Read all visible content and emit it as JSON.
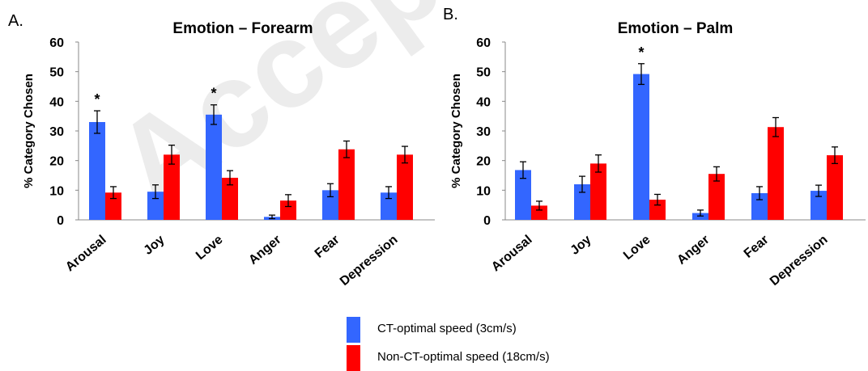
{
  "watermark": "Accepted manuscript",
  "colors": {
    "ct": "#3366ff",
    "non_ct": "#ff0000",
    "error": "#000000"
  },
  "legend": [
    {
      "label": "CT-optimal speed (3cm/s)",
      "color": "#3366ff"
    },
    {
      "label": "Non-CT-optimal speed (18cm/s)",
      "color": "#ff0000"
    }
  ],
  "chart_data": [
    {
      "panel_label": "A.",
      "type": "bar",
      "title": "Emotion – Forearm",
      "ylabel": "% Category Chosen",
      "xlabel": "",
      "ylim": [
        0,
        60
      ],
      "yticks": [
        0,
        10,
        20,
        30,
        40,
        50,
        60
      ],
      "categories": [
        "Arousal",
        "Joy",
        "Love",
        "Anger",
        "Fear",
        "Depression"
      ],
      "series": [
        {
          "name": "CT-optimal speed (3cm/s)",
          "color": "#3366ff",
          "values": [
            33,
            9.5,
            35.5,
            1,
            10,
            9.2
          ],
          "errors": [
            3.8,
            2.3,
            3.3,
            0.6,
            2.2,
            2.0
          ]
        },
        {
          "name": "Non-CT-optimal speed (18cm/s)",
          "color": "#ff0000",
          "values": [
            9.2,
            22,
            14.2,
            6.5,
            23.8,
            22
          ],
          "errors": [
            2.0,
            3.2,
            2.4,
            2.0,
            2.8,
            2.8
          ]
        }
      ],
      "significance": [
        {
          "category": "Arousal",
          "label": "*"
        },
        {
          "category": "Love",
          "label": "*"
        }
      ],
      "grid": false
    },
    {
      "panel_label": "B.",
      "type": "bar",
      "title": "Emotion – Palm",
      "ylabel": "% Category Chosen",
      "xlabel": "",
      "ylim": [
        0,
        60
      ],
      "yticks": [
        0,
        10,
        20,
        30,
        40,
        50,
        60
      ],
      "categories": [
        "Arousal",
        "Joy",
        "Love",
        "Anger",
        "Fear",
        "Depression"
      ],
      "series": [
        {
          "name": "CT-optimal speed (3cm/s)",
          "color": "#3366ff",
          "values": [
            16.8,
            12,
            49.2,
            2.3,
            9,
            9.8
          ],
          "errors": [
            2.8,
            2.7,
            3.5,
            1.0,
            2.2,
            1.9
          ]
        },
        {
          "name": "Non-CT-optimal speed (18cm/s)",
          "color": "#ff0000",
          "values": [
            4.8,
            19,
            6.8,
            15.5,
            31.3,
            21.8
          ],
          "errors": [
            1.5,
            2.9,
            1.8,
            2.4,
            3.2,
            2.8
          ]
        }
      ],
      "significance": [
        {
          "category": "Love",
          "label": "*"
        }
      ],
      "grid": false
    }
  ]
}
